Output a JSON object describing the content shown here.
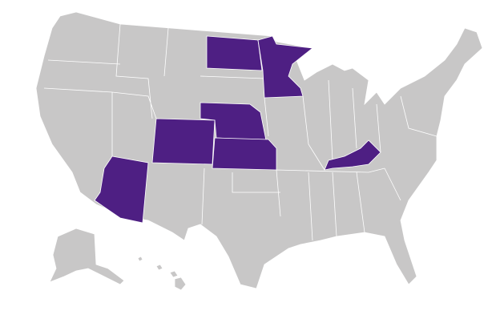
{
  "map": {
    "base_color": "#c8c7c7",
    "highlight_color": "#4e1f83",
    "border_color": "#ffffff"
  }
}
